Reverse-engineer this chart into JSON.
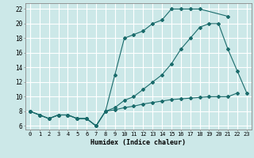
{
  "xlabel": "Humidex (Indice chaleur)",
  "bg_color": "#cce8e8",
  "grid_color": "#ffffff",
  "line_color": "#1a6b6b",
  "xlim": [
    -0.5,
    23.5
  ],
  "ylim": [
    5.5,
    22.8
  ],
  "xticks": [
    0,
    1,
    2,
    3,
    4,
    5,
    6,
    7,
    8,
    9,
    10,
    11,
    12,
    13,
    14,
    15,
    16,
    17,
    18,
    19,
    20,
    21,
    22,
    23
  ],
  "yticks": [
    6,
    8,
    10,
    12,
    14,
    16,
    18,
    20,
    22
  ],
  "line1_x": [
    0,
    1,
    2,
    3,
    4,
    5,
    6,
    7,
    8,
    9,
    10,
    11,
    12,
    13,
    14,
    15,
    16,
    17,
    18,
    21
  ],
  "line1_y": [
    8,
    7.5,
    7,
    7.5,
    7.5,
    7,
    7,
    6,
    8,
    13,
    18,
    18.5,
    19,
    20,
    20.5,
    22,
    22,
    22,
    22,
    21
  ],
  "line2_x": [
    0,
    1,
    2,
    3,
    4,
    5,
    6,
    7,
    8,
    9,
    10,
    11,
    12,
    13,
    14,
    15,
    16,
    17,
    18,
    19,
    20,
    21,
    22,
    23
  ],
  "line2_y": [
    8,
    7.5,
    7,
    7.5,
    7.5,
    7,
    7,
    6,
    8,
    8.5,
    9.5,
    10,
    11,
    12,
    13,
    14.5,
    16.5,
    18,
    19.5,
    20,
    20,
    16.5,
    13.5,
    10.5
  ],
  "line3_x": [
    0,
    1,
    2,
    3,
    4,
    5,
    6,
    7,
    8,
    9,
    10,
    11,
    12,
    13,
    14,
    15,
    16,
    17,
    18,
    19,
    20,
    21,
    22
  ],
  "line3_y": [
    8,
    7.5,
    7,
    7.5,
    7.5,
    7,
    7,
    6,
    8,
    8.2,
    8.5,
    8.7,
    9,
    9.2,
    9.4,
    9.6,
    9.7,
    9.8,
    9.9,
    10,
    10,
    10,
    10.5
  ]
}
